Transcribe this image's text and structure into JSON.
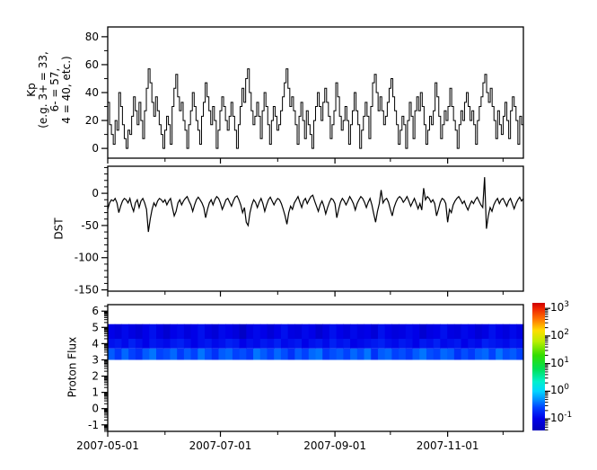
{
  "figure": {
    "background": "#ffffff",
    "axis_color": "#000000",
    "series_color": "#000000"
  },
  "xaxis": {
    "major_tick_labels": [
      "2007-05-01",
      "2007-07-01",
      "2007-09-01",
      "2007-11-01"
    ],
    "major_tick_days": [
      0,
      61,
      123,
      184
    ],
    "minor_tick_days": [
      31,
      92,
      153,
      214
    ],
    "span_days": 225
  },
  "chart_data": [
    {
      "type": "line",
      "step": true,
      "ylabel": "Kp\n(e.g. 3+ = 33,\n6- = 57,\n4 = 40, etc.)",
      "ylim": [
        -7,
        87
      ],
      "yticks": [
        80,
        60,
        40,
        20,
        0
      ],
      "yminor_step": 10,
      "x_start": "2007-05-01",
      "x_step_days": 1,
      "values": [
        33,
        17,
        10,
        3,
        20,
        13,
        40,
        30,
        17,
        7,
        0,
        13,
        10,
        23,
        37,
        27,
        17,
        33,
        20,
        7,
        27,
        43,
        57,
        47,
        33,
        23,
        37,
        27,
        17,
        10,
        0,
        13,
        23,
        17,
        3,
        30,
        43,
        53,
        37,
        27,
        33,
        20,
        13,
        0,
        17,
        27,
        40,
        30,
        20,
        13,
        3,
        23,
        33,
        47,
        37,
        27,
        17,
        30,
        20,
        0,
        13,
        27,
        37,
        30,
        20,
        13,
        23,
        33,
        23,
        13,
        0,
        17,
        30,
        43,
        33,
        50,
        57,
        40,
        27,
        17,
        23,
        33,
        23,
        7,
        27,
        40,
        30,
        17,
        3,
        20,
        30,
        23,
        13,
        17,
        27,
        37,
        47,
        57,
        43,
        30,
        37,
        27,
        17,
        3,
        23,
        33,
        20,
        7,
        27,
        17,
        10,
        0,
        20,
        30,
        40,
        30,
        20,
        33,
        43,
        33,
        23,
        7,
        17,
        27,
        47,
        37,
        23,
        13,
        20,
        30,
        20,
        3,
        17,
        27,
        40,
        27,
        17,
        0,
        13,
        23,
        33,
        23,
        7,
        30,
        47,
        53,
        40,
        27,
        37,
        27,
        17,
        23,
        33,
        43,
        50,
        37,
        27,
        17,
        3,
        13,
        23,
        17,
        0,
        20,
        33,
        23,
        7,
        27,
        37,
        27,
        40,
        30,
        17,
        3,
        13,
        23,
        17,
        27,
        47,
        37,
        23,
        7,
        17,
        27,
        20,
        30,
        43,
        30,
        20,
        13,
        0,
        17,
        27,
        20,
        33,
        40,
        30,
        20,
        27,
        17,
        3,
        20,
        30,
        37,
        47,
        53,
        40,
        33,
        43,
        30,
        20,
        7,
        27,
        17,
        10,
        23,
        33,
        20,
        7,
        27,
        37,
        30,
        20,
        3,
        23,
        17
      ]
    },
    {
      "type": "line",
      "step": false,
      "ylabel": "DST",
      "ylim": [
        -152,
        42
      ],
      "yticks": [
        0,
        -50,
        -100,
        -150
      ],
      "yminor_step": 10,
      "x_start": "2007-05-01",
      "x_step_days": 1,
      "values": [
        -25,
        -15,
        -10,
        -12,
        -8,
        -15,
        -30,
        -20,
        -12,
        -8,
        -10,
        -15,
        -8,
        -20,
        -28,
        -15,
        -10,
        -22,
        -12,
        -8,
        -15,
        -25,
        -60,
        -40,
        -25,
        -15,
        -20,
        -12,
        -8,
        -10,
        -14,
        -10,
        -18,
        -12,
        -8,
        -22,
        -35,
        -28,
        -15,
        -10,
        -18,
        -12,
        -8,
        -5,
        -12,
        -18,
        -28,
        -18,
        -10,
        -6,
        -10,
        -15,
        -22,
        -38,
        -25,
        -15,
        -10,
        -18,
        -10,
        -5,
        -8,
        -15,
        -25,
        -18,
        -10,
        -8,
        -14,
        -20,
        -12,
        -6,
        -4,
        -10,
        -18,
        -30,
        -22,
        -45,
        -50,
        -30,
        -18,
        -10,
        -14,
        -22,
        -14,
        -8,
        -16,
        -28,
        -18,
        -10,
        -6,
        -12,
        -18,
        -12,
        -8,
        -10,
        -16,
        -25,
        -35,
        -48,
        -30,
        -20,
        -25,
        -15,
        -10,
        -5,
        -14,
        -22,
        -12,
        -8,
        -16,
        -10,
        -5,
        -3,
        -12,
        -20,
        -28,
        -18,
        -12,
        -20,
        -32,
        -22,
        -14,
        -8,
        -10,
        -16,
        -38,
        -25,
        -14,
        -8,
        -12,
        -18,
        -12,
        -5,
        -10,
        -16,
        -26,
        -16,
        -10,
        -5,
        -8,
        -14,
        -22,
        -14,
        -8,
        -18,
        -32,
        -45,
        -28,
        -16,
        5,
        -15,
        -10,
        -8,
        -14,
        -25,
        -35,
        -22,
        -14,
        -8,
        -5,
        -8,
        -14,
        -10,
        -5,
        -12,
        -20,
        -14,
        -8,
        -16,
        -24,
        -16,
        -26,
        8,
        -10,
        -5,
        -8,
        -14,
        -10,
        -16,
        -35,
        -25,
        -14,
        -8,
        -10,
        -16,
        -45,
        -25,
        -30,
        -18,
        -12,
        -8,
        -5,
        -10,
        -16,
        -12,
        -20,
        -26,
        -18,
        -12,
        -16,
        -10,
        -6,
        -12,
        -18,
        -22,
        25,
        -55,
        -35,
        -22,
        -28,
        -18,
        -12,
        -8,
        -16,
        -10,
        -8,
        -14,
        -20,
        -12,
        -8,
        -16,
        -24,
        -16,
        -10,
        -6,
        -12,
        -8
      ]
    },
    {
      "type": "heatmap",
      "ylabel": "Proton Flux",
      "ylim": [
        -1.4,
        6.4
      ],
      "yticks": [
        6,
        5,
        4,
        3,
        2,
        1,
        0,
        -1
      ],
      "log_minor_ticks": true,
      "x_start": "2007-05-01",
      "band": {
        "y0": 3.0,
        "y1": 5.2,
        "rows": [
          {
            "y0": 4.3,
            "y1": 5.2,
            "values": [
              -1.0,
              -1.1,
              -0.95,
              -1.05,
              -1.15,
              -1.0,
              -0.9,
              -1.05,
              -1.2,
              -1.0,
              -0.95,
              -1.1,
              -1.0,
              -0.9,
              -1.05,
              -1.15,
              -0.95,
              -1.0,
              -1.1,
              -1.3,
              -1.05,
              -0.95,
              -1.0,
              -1.15,
              -1.0,
              -0.9,
              -1.05,
              -1.1,
              -0.95,
              -1.0,
              -1.2,
              -1.05,
              -0.9,
              -1.0,
              -1.1,
              -0.95,
              -1.05,
              -1.0,
              -1.15,
              -0.9,
              -1.0,
              -1.1,
              -1.05,
              -0.95,
              -1.0,
              -1.2,
              -1.05,
              -1.0,
              -0.9,
              -1.05,
              -1.1,
              -0.95,
              -1.0,
              -1.15,
              -1.05,
              -0.9,
              -1.0,
              -1.1,
              -0.95,
              -1.05
            ]
          },
          {
            "y0": 3.7,
            "y1": 4.3,
            "values": [
              -0.9,
              -0.85,
              -0.95,
              -0.8,
              -0.9,
              -1.0,
              -0.85,
              -0.9,
              -0.95,
              -0.85,
              -0.8,
              -0.9,
              -1.0,
              -0.9,
              -0.85,
              -0.95,
              -0.9,
              -0.8,
              -0.85,
              -1.0,
              -0.9,
              -0.95,
              -0.85,
              -0.9,
              -0.8,
              -0.95,
              -0.9,
              -0.85,
              -1.0,
              -0.9,
              -0.85,
              -0.95,
              -0.8,
              -0.9,
              -0.85,
              -1.0,
              -0.95,
              -0.9,
              -0.85,
              -0.8,
              -0.9,
              -0.95,
              -0.85,
              -0.9,
              -1.0,
              -0.85,
              -0.9,
              -0.8,
              -0.95,
              -0.9,
              -0.85,
              -1.0,
              -0.9,
              -0.95,
              -0.8,
              -0.85,
              -0.9,
              -0.95,
              -0.85,
              -0.9
            ]
          },
          {
            "y0": 3.0,
            "y1": 3.7,
            "values": [
              -0.5,
              -0.65,
              -0.45,
              -0.6,
              -0.7,
              -0.5,
              -0.4,
              -0.6,
              -0.55,
              -0.45,
              -0.65,
              -0.5,
              -0.6,
              -0.4,
              -0.55,
              -0.7,
              -0.5,
              -0.45,
              -0.6,
              -0.55,
              -0.65,
              -0.4,
              -0.5,
              -0.6,
              -0.45,
              -0.55,
              -0.7,
              -0.5,
              -0.6,
              -0.45,
              -0.4,
              -0.65,
              -0.55,
              -0.5,
              -0.6,
              -0.45,
              -0.55,
              -0.4,
              -0.7,
              -0.5,
              -0.45,
              -0.6,
              -0.55,
              -0.65,
              -0.5,
              -0.4,
              -0.55,
              -0.6,
              -0.45,
              -0.5,
              -0.7,
              -0.55,
              -0.65,
              -0.5,
              -0.45,
              -0.6,
              -0.4,
              -0.55,
              -0.5,
              -0.6
            ]
          }
        ]
      }
    }
  ],
  "colorbar": {
    "exponents": [
      3,
      2,
      1,
      0,
      -1
    ],
    "vlim": [
      -1.42,
      3.2
    ],
    "colormap": [
      [
        3.2,
        "#cc0000"
      ],
      [
        3.0,
        "#ee2200"
      ],
      [
        2.6,
        "#ff7700"
      ],
      [
        2.2,
        "#ffdd00"
      ],
      [
        1.8,
        "#bbee00"
      ],
      [
        1.3,
        "#33dd00"
      ],
      [
        0.8,
        "#00e055"
      ],
      [
        0.35,
        "#00f0cc"
      ],
      [
        0.0,
        "#00d5ff"
      ],
      [
        -0.3,
        "#0090ff"
      ],
      [
        -0.6,
        "#0040ff"
      ],
      [
        -1.0,
        "#0000e8"
      ],
      [
        -1.42,
        "#0000b8"
      ]
    ]
  }
}
